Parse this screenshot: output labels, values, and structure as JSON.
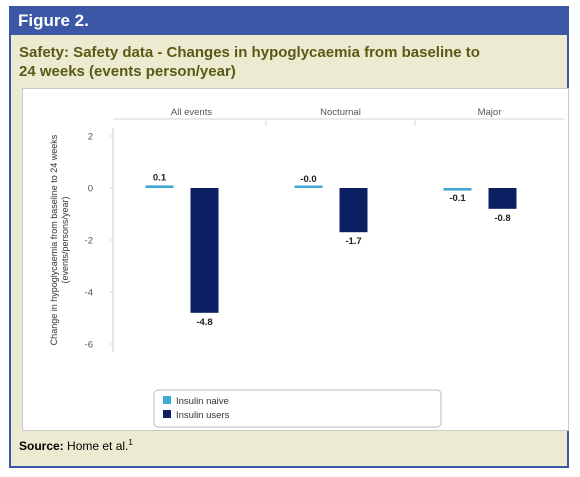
{
  "figure_label": "Figure 2.",
  "chart_data": {
    "type": "bar",
    "title_line1": "Safety: Safety data - Changes in hypoglycaemia from baseline to",
    "title_line2": "24 weeks (events person/year)",
    "categories": [
      "All events",
      "Nocturnal",
      "Major"
    ],
    "series": [
      {
        "name": "Insulin naive",
        "color": "#3fa9d6",
        "values": [
          0.1,
          -0.0,
          -0.1
        ],
        "labels": [
          "0.1",
          "-0.0",
          "-0.1"
        ]
      },
      {
        "name": "Insulin users",
        "color": "#0b1f62",
        "values": [
          -4.8,
          -1.7,
          -0.8
        ],
        "labels": [
          "-4.8",
          "-1.7",
          "-0.8"
        ]
      }
    ],
    "ylabel_line1": "Change in hypoglycaemia from baseline to 24 weeks",
    "ylabel_line2": "(events/persons/year)",
    "yticks": [
      "2",
      "0",
      "-2",
      "-4",
      "-6"
    ],
    "ylim": [
      -6,
      2
    ],
    "grid": false,
    "legend_position": "bottom-left"
  },
  "source": {
    "label": "Source:",
    "text": " Home et al.",
    "superscript": "1"
  }
}
